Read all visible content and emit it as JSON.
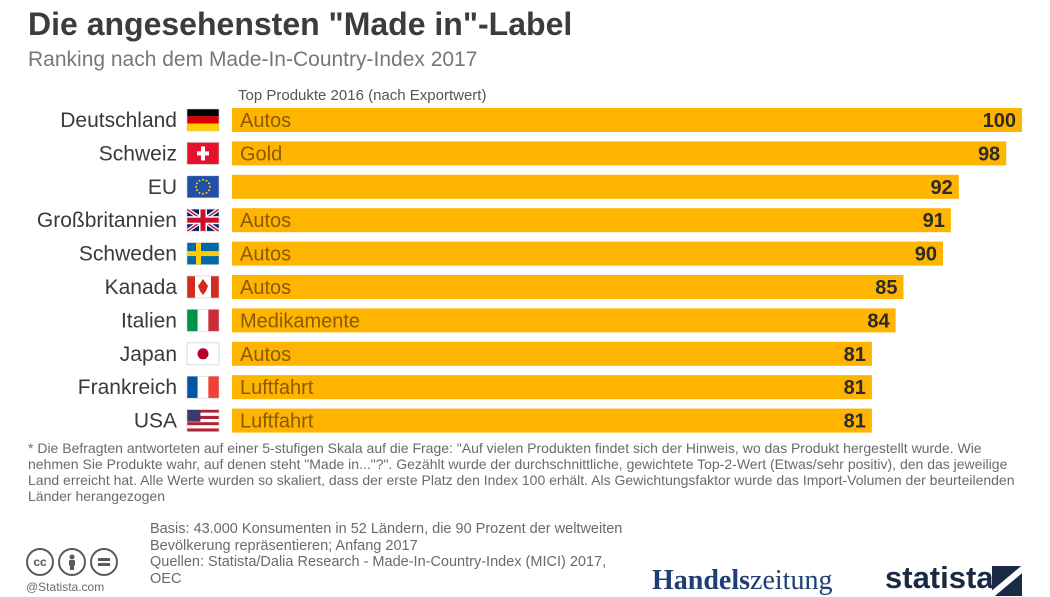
{
  "header": {
    "title": "Die angesehensten \"Made in\"-Label",
    "subtitle": "Ranking nach dem Made-In-Country-Index 2017",
    "column_header": "Top Produkte 2016 (nach Exportwert)"
  },
  "colors": {
    "bar": "#ffb400",
    "bar_text": "#8a5a00",
    "value_text": "#2b2b2b",
    "label_text": "#3a3a3a"
  },
  "chart_data": {
    "type": "bar",
    "orientation": "horizontal",
    "categories": [
      "Deutschland",
      "Schweiz",
      "EU",
      "Großbritannien",
      "Schweden",
      "Kanada",
      "Italien",
      "Japan",
      "Frankreich",
      "USA"
    ],
    "values": [
      100,
      98,
      92,
      91,
      90,
      85,
      84,
      81,
      81,
      81
    ],
    "top_products": [
      "Autos",
      "Gold",
      "",
      "Autos",
      "Autos",
      "Autos",
      "Medikamente",
      "Autos",
      "Luftfahrt",
      "Luftfahrt"
    ],
    "flag_icons": [
      "flag-germany-icon",
      "flag-switzerland-icon",
      "flag-eu-icon",
      "flag-uk-icon",
      "flag-sweden-icon",
      "flag-canada-icon",
      "flag-italy-icon",
      "flag-japan-icon",
      "flag-france-icon",
      "flag-usa-icon"
    ],
    "xlim": [
      0,
      100
    ],
    "grid": false,
    "legend": "none"
  },
  "footnote": "* Die Befragten antworteten auf einer 5-stufigen Skala auf die Frage: \"Auf vielen Produkten findet sich der Hinweis, wo das Produkt hergestellt wurde. Wie nehmen Sie Produkte wahr, auf denen steht \"Made in...\"?\". Gezählt wurde der durchschnittliche, gewichtete Top-2-Wert (Etwas/sehr positiv), den das jeweilige Land erreicht hat. Alle Werte wurden so skaliert, dass der erste Platz den Index 100 erhält. Als Gewichtungsfaktor wurde das Import-Volumen der beurteilenden Länder herangezogen",
  "source": {
    "basis": "Basis: 43.000 Konsumenten in 52 Ländern, die 90 Prozent der weltweiten Bevölkerung repräsentieren; Anfang 2017",
    "quellen": "Quellen: Statista/Dalia Research - Made-In-Country-Index (MICI) 2017, OEC"
  },
  "branding": {
    "copyright": "@Statista.com",
    "publisher_prefix": "Handels",
    "publisher_suffix": "zeitung",
    "logo": "statista",
    "license_icons": [
      "cc-icon",
      "by-icon",
      "nd-icon"
    ]
  }
}
